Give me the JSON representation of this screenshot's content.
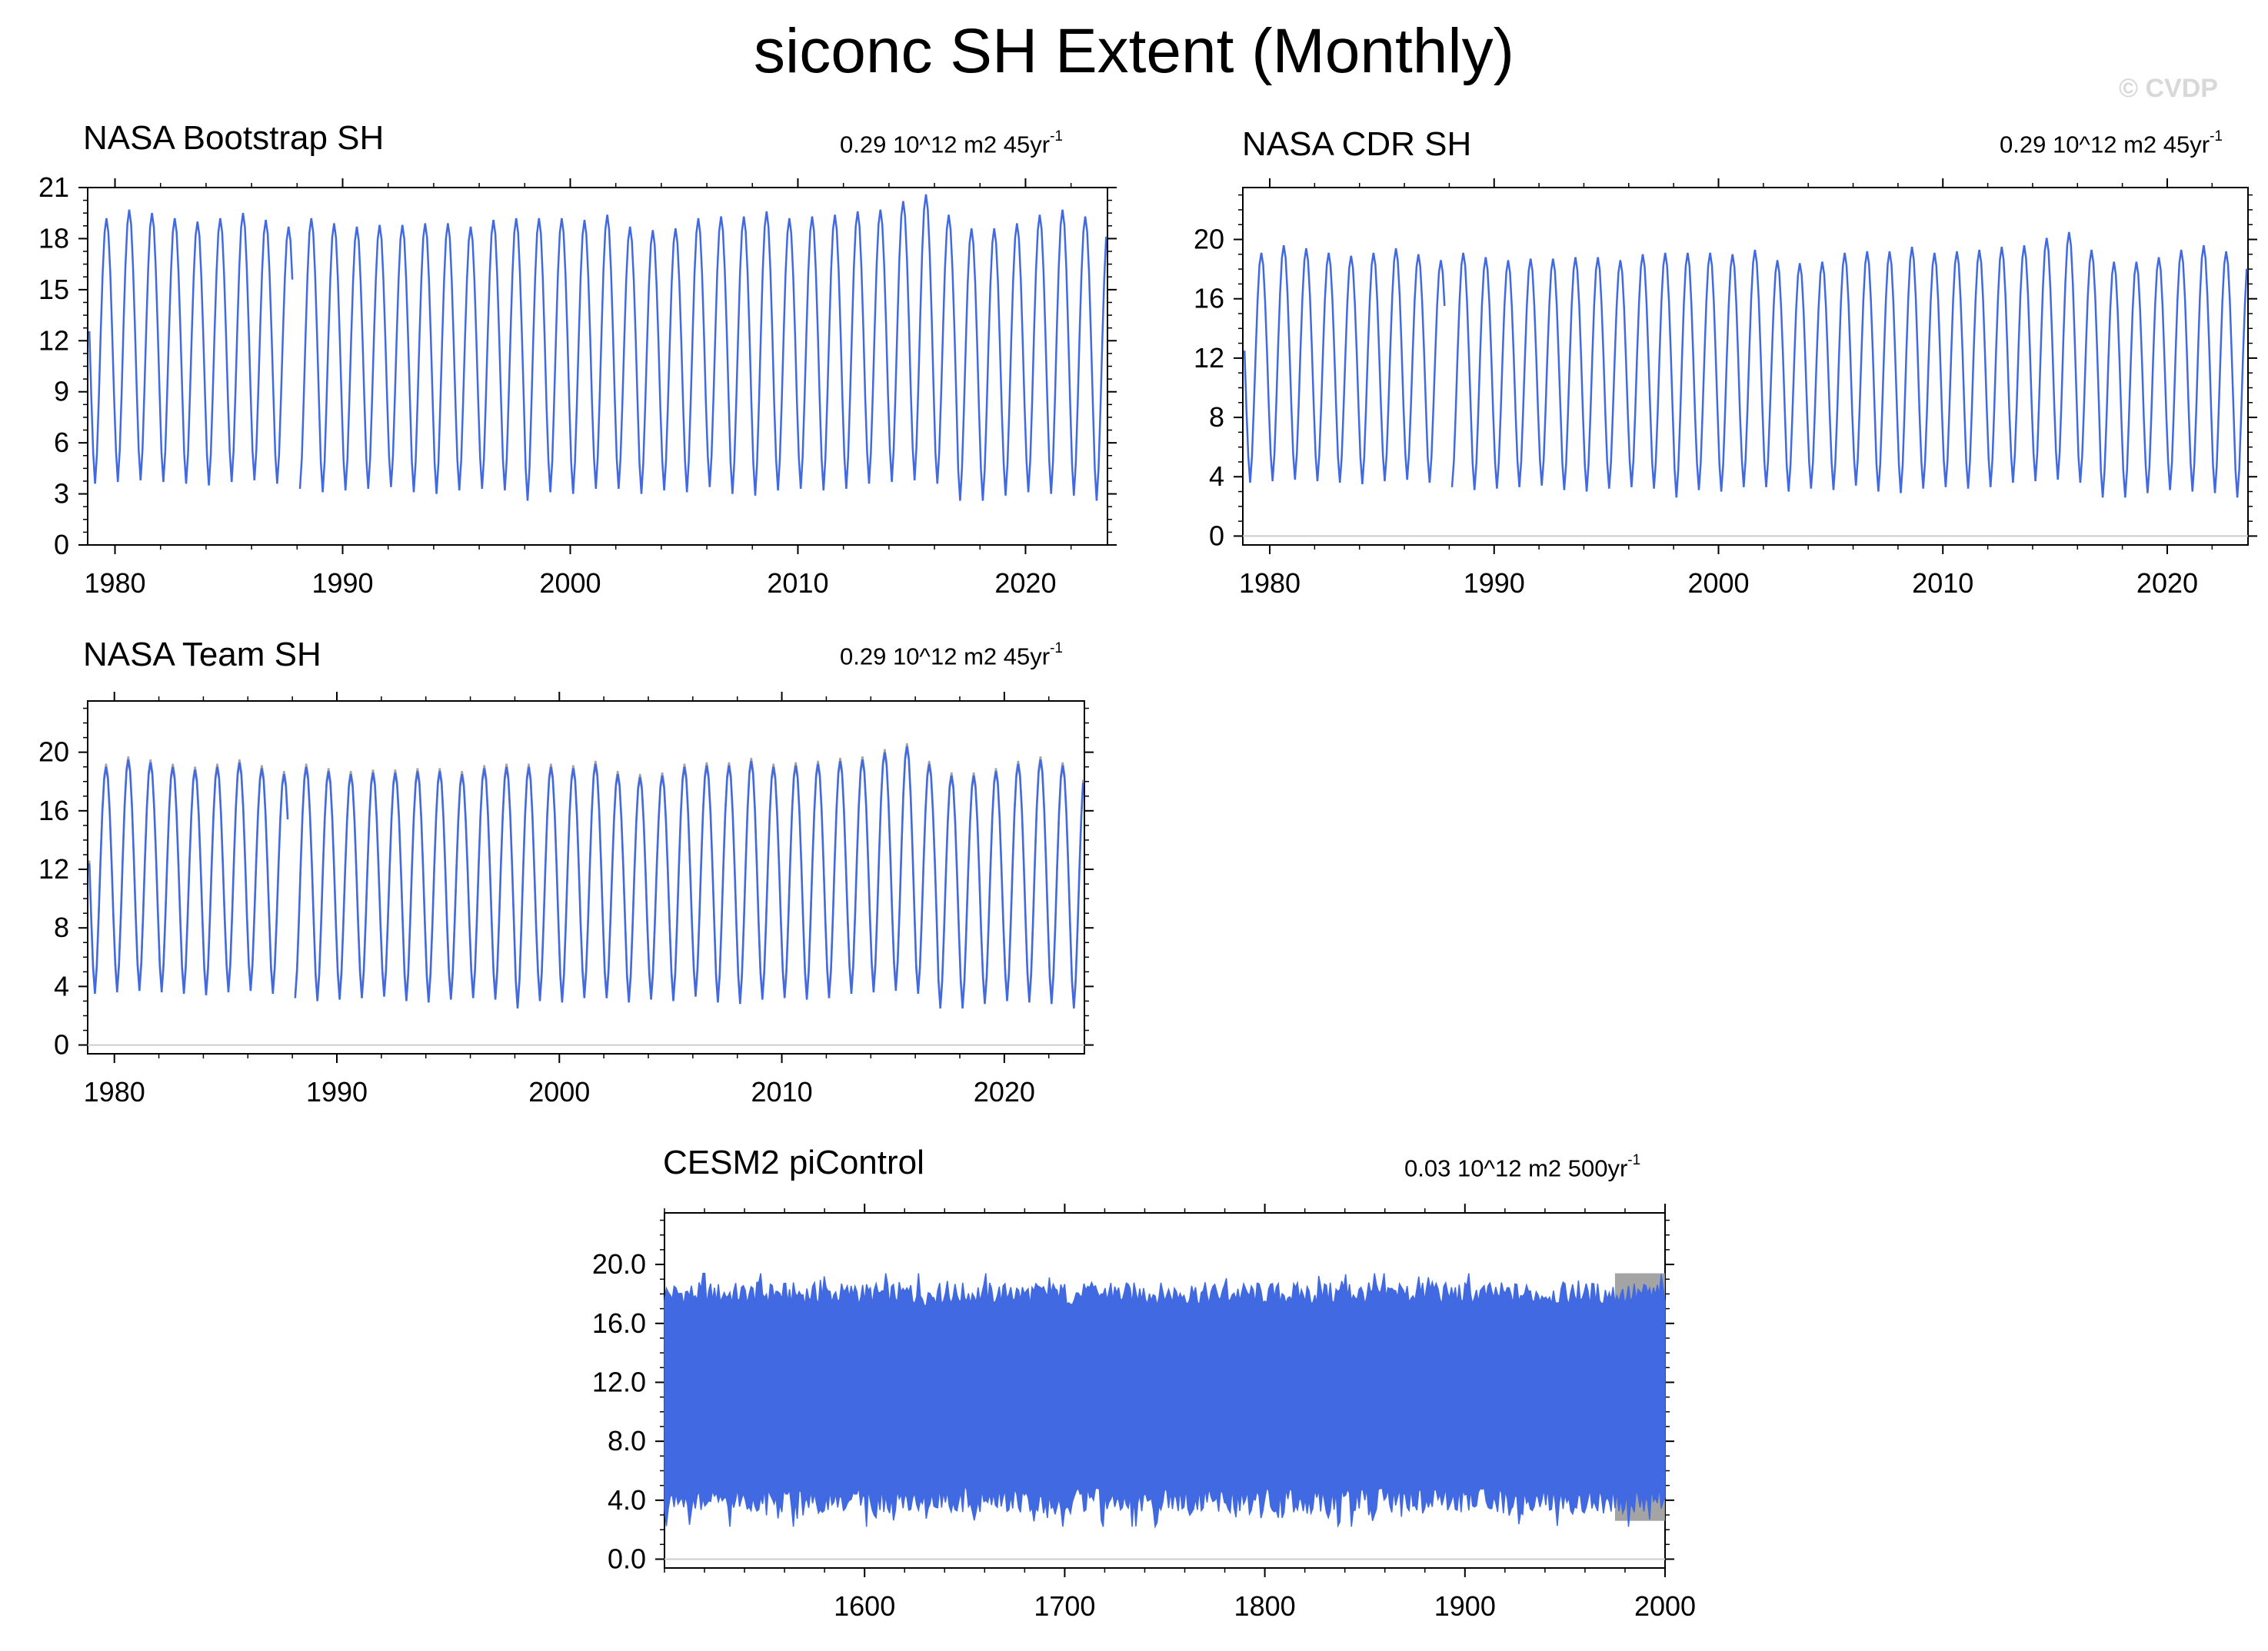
{
  "title": "siconc SH Extent (Monthly)",
  "watermark": "© CVDP",
  "colors": {
    "series": "#4169e1",
    "shadow": "#9a9a9a",
    "zero_line": "#cccccc",
    "axis": "#000000"
  },
  "chart_data": [
    {
      "type": "line",
      "title": "NASA Bootstrap SH",
      "trend": {
        "value": "0.29 10^12 m2 45yr",
        "exp": "-1"
      },
      "xlabel": "",
      "ylabel": "",
      "xlim": [
        1978.8,
        2023.6
      ],
      "ylim": [
        0,
        21
      ],
      "yticks": [
        "0",
        "3",
        "6",
        "9",
        "12",
        "15",
        "18",
        "21"
      ],
      "xticks": [
        "1980",
        "1990",
        "2000",
        "2010",
        "2020"
      ],
      "zero_line": false,
      "series": [
        {
          "annual_max": [
            19.2,
            19.7,
            19.5,
            19.2,
            19.0,
            19.2,
            19.5,
            19.1,
            18.7,
            19.2,
            18.9,
            18.7,
            18.8,
            18.8,
            18.9,
            18.9,
            18.7,
            19.1,
            19.2,
            19.2,
            19.2,
            19.1,
            19.4,
            18.7,
            18.5,
            18.6,
            19.2,
            19.3,
            19.3,
            19.6,
            19.2,
            19.3,
            19.4,
            19.6,
            19.7,
            20.2,
            20.6,
            19.4,
            18.6,
            18.6,
            18.9,
            19.4,
            19.7,
            19.3,
            19.0
          ],
          "annual_min": [
            3.6,
            3.7,
            3.8,
            3.7,
            3.6,
            3.5,
            3.7,
            3.8,
            3.6,
            3.3,
            3.1,
            3.2,
            3.3,
            3.4,
            3.1,
            3.0,
            3.2,
            3.3,
            3.2,
            2.6,
            3.1,
            3.0,
            3.3,
            3.3,
            3.0,
            3.2,
            3.1,
            3.4,
            3.0,
            2.9,
            3.2,
            3.3,
            3.2,
            3.3,
            3.6,
            3.7,
            3.8,
            3.6,
            2.6,
            2.6,
            2.9,
            3.1,
            3.0,
            2.9,
            2.6
          ]
        }
      ]
    },
    {
      "type": "line",
      "title": "NASA CDR SH",
      "trend": {
        "value": "0.29 10^12 m2 45yr",
        "exp": "-1"
      },
      "xlabel": "",
      "ylabel": "",
      "xlim": [
        1978.8,
        2023.6
      ],
      "ylim": [
        -0.6,
        23.5
      ],
      "yticks": [
        "0",
        "4",
        "8",
        "12",
        "16",
        "20"
      ],
      "xticks": [
        "1980",
        "1990",
        "2000",
        "2010",
        "2020"
      ],
      "zero_line": true,
      "series": [
        {
          "annual_max": [
            19.1,
            19.6,
            19.4,
            19.1,
            18.9,
            19.1,
            19.4,
            19.0,
            18.6,
            19.1,
            18.8,
            18.6,
            18.7,
            18.7,
            18.8,
            18.8,
            18.6,
            19.0,
            19.1,
            19.1,
            19.1,
            19.0,
            19.3,
            18.6,
            18.4,
            18.5,
            19.1,
            19.2,
            19.2,
            19.5,
            19.1,
            19.2,
            19.3,
            19.5,
            19.6,
            20.1,
            20.5,
            19.3,
            18.5,
            18.5,
            18.8,
            19.3,
            19.6,
            19.2,
            18.9
          ],
          "annual_min": [
            3.6,
            3.7,
            3.8,
            3.7,
            3.6,
            3.5,
            3.7,
            3.8,
            3.6,
            3.3,
            3.1,
            3.2,
            3.3,
            3.4,
            3.1,
            3.0,
            3.2,
            3.3,
            3.2,
            2.6,
            3.1,
            3.0,
            3.3,
            3.3,
            3.0,
            3.2,
            3.1,
            3.4,
            3.0,
            2.9,
            3.2,
            3.3,
            3.2,
            3.3,
            3.6,
            3.7,
            3.8,
            3.6,
            2.6,
            2.6,
            2.9,
            3.1,
            3.0,
            2.9,
            2.6
          ]
        }
      ]
    },
    {
      "type": "line",
      "title": "NASA Team SH",
      "trend": {
        "value": "0.29 10^12 m2 45yr",
        "exp": "-1"
      },
      "xlabel": "",
      "ylabel": "",
      "xlim": [
        1978.8,
        2023.6
      ],
      "ylim": [
        -0.6,
        23.5
      ],
      "yticks": [
        "0",
        "4",
        "8",
        "12",
        "16",
        "20"
      ],
      "xticks": [
        "1980",
        "1990",
        "2000",
        "2010",
        "2020"
      ],
      "zero_line": true,
      "series": [
        {
          "annual_max": [
            19.0,
            19.5,
            19.3,
            19.0,
            18.8,
            19.0,
            19.3,
            18.9,
            18.5,
            19.0,
            18.7,
            18.5,
            18.6,
            18.6,
            18.7,
            18.7,
            18.5,
            18.9,
            19.0,
            19.0,
            19.0,
            18.9,
            19.2,
            18.5,
            18.3,
            18.4,
            19.0,
            19.1,
            19.1,
            19.4,
            19.0,
            19.1,
            19.2,
            19.4,
            19.5,
            20.0,
            20.4,
            19.2,
            18.4,
            18.4,
            18.7,
            19.2,
            19.5,
            19.1,
            18.8
          ],
          "annual_min": [
            3.5,
            3.6,
            3.7,
            3.6,
            3.5,
            3.4,
            3.6,
            3.7,
            3.5,
            3.2,
            3.0,
            3.1,
            3.2,
            3.3,
            3.0,
            2.9,
            3.1,
            3.2,
            3.1,
            2.5,
            3.0,
            2.9,
            3.2,
            3.2,
            2.9,
            3.1,
            3.0,
            3.3,
            2.9,
            2.8,
            3.1,
            3.2,
            3.1,
            3.2,
            3.5,
            3.6,
            3.7,
            3.5,
            2.5,
            2.5,
            2.8,
            3.0,
            2.9,
            2.8,
            2.5
          ]
        }
      ]
    },
    {
      "type": "line",
      "title": "CESM2 piControl",
      "trend": {
        "value": "0.03 10^12 m2 500yr",
        "exp": "-1"
      },
      "xlabel": "",
      "ylabel": "",
      "xlim": [
        1500,
        2000
      ],
      "ylim": [
        -0.6,
        23.5
      ],
      "yticks": [
        "0.0",
        "4.0",
        "8.0",
        "12.0",
        "16.0",
        "20.0"
      ],
      "xticks": [
        "1600",
        "1700",
        "1800",
        "1900",
        "2000"
      ],
      "zero_line": true,
      "series": [
        {
          "mean_max": 18.0,
          "mean_min": 4.0,
          "max_range": [
            16.8,
            19.4
          ],
          "min_range": [
            2.2,
            5.6
          ]
        }
      ]
    }
  ]
}
